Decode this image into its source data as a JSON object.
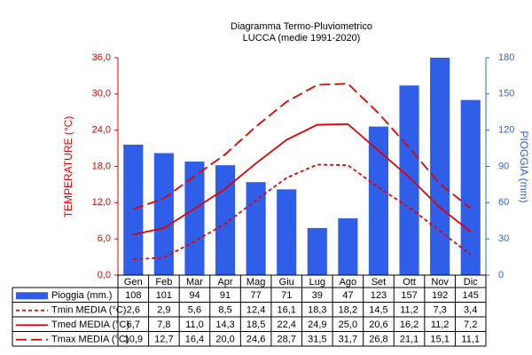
{
  "chart_data": {
    "type": "combo",
    "title": "Diagramma Termo-Pluviometrico",
    "subtitle": "LUCCA (medie 1991-2020)",
    "y_label": "TEMPERATURE (°C)",
    "y2_label": "PIOGGIA (mm)",
    "categories": [
      "Gen",
      "Feb",
      "Mar",
      "Apr",
      "Mag",
      "Giu",
      "Lug",
      "Ago",
      "Set",
      "Ott",
      "Nov",
      "Dic"
    ],
    "ylim": [
      0,
      36
    ],
    "yticks": [
      {
        "value": 0,
        "label": "0,0"
      },
      {
        "value": 6,
        "label": "6,0"
      },
      {
        "value": 12,
        "label": "12,0"
      },
      {
        "value": 18,
        "label": "18,0"
      },
      {
        "value": 24,
        "label": "24,0"
      },
      {
        "value": 30,
        "label": "30,0"
      },
      {
        "value": 36,
        "label": "36,0"
      }
    ],
    "y2lim": [
      0,
      180
    ],
    "y2ticks": [
      0,
      30,
      60,
      90,
      120,
      150,
      180
    ],
    "series": [
      {
        "name": "Pioggia (mm.)",
        "kind": "bar",
        "axis": "y2",
        "color": "#2f5fe8",
        "values": [
          108,
          101,
          94,
          91,
          77,
          71,
          39,
          47,
          123,
          157,
          192,
          145
        ]
      },
      {
        "name": "Tmin MEDIA (°C)",
        "kind": "line",
        "line_style": "dotted",
        "color": "#e60000",
        "values": [
          2.6,
          2.9,
          5.6,
          8.5,
          12.4,
          16.1,
          18.3,
          18.2,
          14.5,
          11.2,
          7.3,
          3.4
        ],
        "value_labels": [
          "2,6",
          "2,9",
          "5,6",
          "8,5",
          "12,4",
          "16,1",
          "18,3",
          "18,2",
          "14,5",
          "11,2",
          "7,3",
          "3,4"
        ]
      },
      {
        "name": "Tmed MEDIA (°C)",
        "kind": "line",
        "line_style": "solid",
        "color": "#e60000",
        "values": [
          6.7,
          7.8,
          11.0,
          14.3,
          18.5,
          22.4,
          24.9,
          25.0,
          20.6,
          16.2,
          11.2,
          7.2
        ],
        "value_labels": [
          "6,7",
          "7,8",
          "11,0",
          "14,3",
          "18,5",
          "22,4",
          "24,9",
          "25,0",
          "20,6",
          "16,2",
          "11,2",
          "7,2"
        ]
      },
      {
        "name": "Tmax MEDIA (°C)",
        "kind": "line",
        "line_style": "dashed",
        "color": "#e60000",
        "values": [
          10.9,
          12.7,
          16.4,
          20.0,
          24.6,
          28.7,
          31.5,
          31.7,
          26.8,
          21.1,
          15.1,
          11.1
        ],
        "value_labels": [
          "10,9",
          "12,7",
          "16,4",
          "20,0",
          "24,6",
          "28,7",
          "31,5",
          "31,7",
          "26,8",
          "21,1",
          "15,1",
          "11,1"
        ]
      }
    ]
  }
}
